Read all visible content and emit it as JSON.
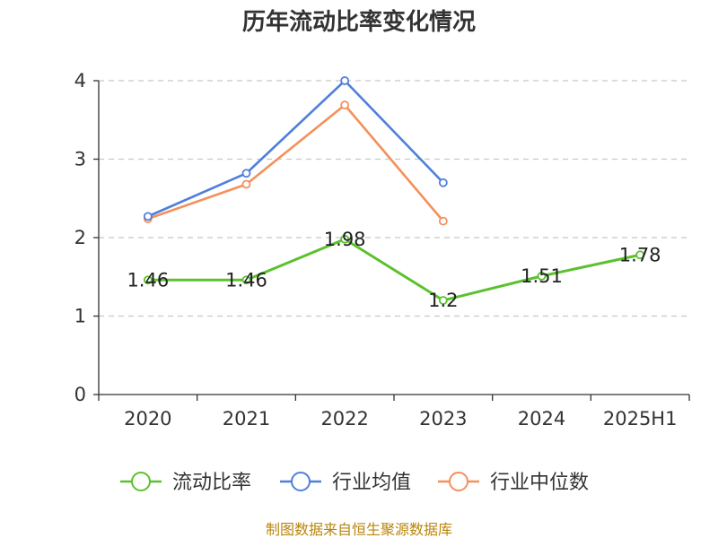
{
  "chart_data": {
    "type": "line",
    "title": "历年流动比率变化情况",
    "categories": [
      "2020",
      "2021",
      "2022",
      "2023",
      "2024",
      "2025H1"
    ],
    "ylim": [
      0,
      4
    ],
    "yticks": [
      "0",
      "1",
      "2",
      "3",
      "4"
    ],
    "grid": "horizontal-dashed",
    "legend_position": "bottom",
    "series": [
      {
        "name": "流动比率",
        "color": "#5cc12e",
        "values": [
          1.46,
          1.46,
          1.98,
          1.2,
          1.51,
          1.78
        ],
        "labels": [
          "1.46",
          "1.46",
          "1.98",
          "1.2",
          "1.51",
          "1.78"
        ]
      },
      {
        "name": "行业均值",
        "color": "#4f7fdc",
        "values": [
          2.27,
          2.82,
          4.0,
          2.7,
          null,
          null
        ]
      },
      {
        "name": "行业中位数",
        "color": "#f4905a",
        "values": [
          2.24,
          2.68,
          3.69,
          2.21,
          null,
          null
        ]
      }
    ],
    "source": "制图数据来自恒生聚源数据库"
  }
}
